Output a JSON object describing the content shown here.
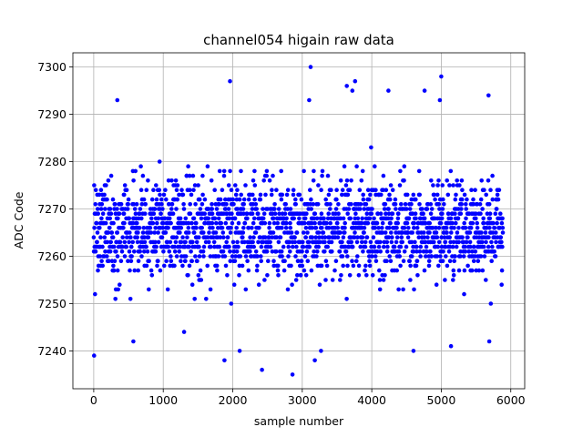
{
  "chart_data": {
    "type": "scatter",
    "title": "channel054 higain raw data",
    "xlabel": "sample number",
    "ylabel": "ADC Code",
    "xlim": [
      -300,
      6200
    ],
    "ylim": [
      7232,
      7303
    ],
    "xticks": [
      0,
      1000,
      2000,
      3000,
      4000,
      5000,
      6000
    ],
    "yticks": [
      7240,
      7250,
      7260,
      7270,
      7280,
      7290,
      7300
    ],
    "grid": true,
    "marker_color": "#0000ff",
    "series": [
      {
        "n_samples": 5888,
        "x_start": 0,
        "x_step": 1,
        "typical_range": [
          7252,
          7282
        ],
        "center": 7266,
        "outliers": [
          {
            "x": 5,
            "y": 7239
          },
          {
            "x": 1880,
            "y": 7238
          },
          {
            "x": 1960,
            "y": 7297
          },
          {
            "x": 2100,
            "y": 7240
          },
          {
            "x": 2420,
            "y": 7236
          },
          {
            "x": 2860,
            "y": 7235
          },
          {
            "x": 3120,
            "y": 7300
          },
          {
            "x": 3180,
            "y": 7238
          },
          {
            "x": 3270,
            "y": 7240
          },
          {
            "x": 3640,
            "y": 7296
          },
          {
            "x": 3720,
            "y": 7295
          },
          {
            "x": 3760,
            "y": 7297
          },
          {
            "x": 4240,
            "y": 7295
          },
          {
            "x": 4600,
            "y": 7240
          },
          {
            "x": 4760,
            "y": 7295
          },
          {
            "x": 4980,
            "y": 7293
          },
          {
            "x": 5000,
            "y": 7298
          },
          {
            "x": 5140,
            "y": 7241
          },
          {
            "x": 5680,
            "y": 7294
          },
          {
            "x": 5690,
            "y": 7242
          },
          {
            "x": 570,
            "y": 7242
          },
          {
            "x": 340,
            "y": 7293
          },
          {
            "x": 1300,
            "y": 7244
          },
          {
            "x": 3100,
            "y": 7293
          }
        ]
      }
    ]
  }
}
